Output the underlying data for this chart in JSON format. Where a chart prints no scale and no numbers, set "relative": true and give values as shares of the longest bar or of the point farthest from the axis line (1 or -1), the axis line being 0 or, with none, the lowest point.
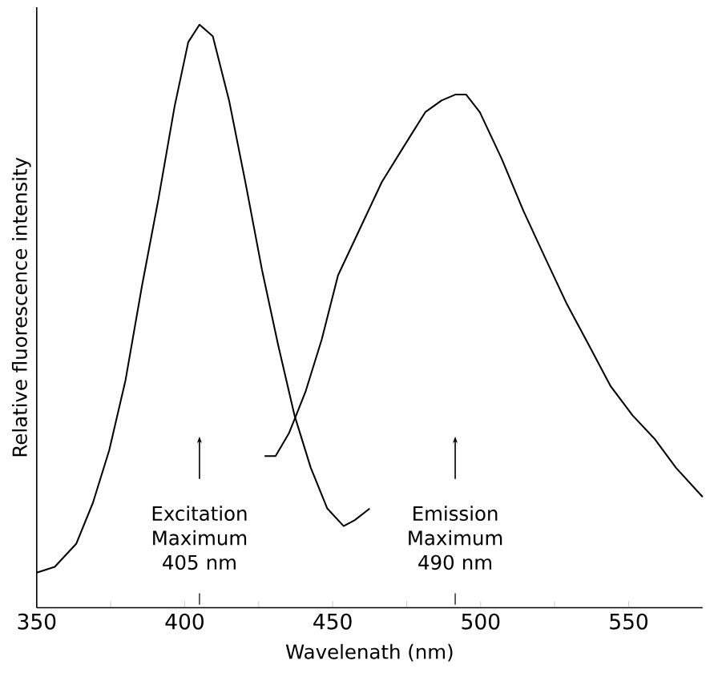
{
  "chart_data": {
    "type": "line",
    "relative": true,
    "xlabel": "Wavelenath (nm)",
    "ylabel": "Relative fluorescence intensity",
    "xlim": [
      350,
      575
    ],
    "xticks": [
      350,
      {
        "value": 375,
        "label": null
      },
      400,
      {
        "value": 425,
        "label": null
      },
      450,
      {
        "value": 475,
        "label": null
      },
      500,
      {
        "value": 525,
        "label": null
      },
      550
    ],
    "grid": false,
    "marker": "none",
    "line_style": "solid",
    "series": [
      {
        "color": "#000000",
        "x": [
          350,
          356.1,
          363.4,
          369,
          374.5,
          380,
          385.5,
          391.1,
          396.6,
          401.2,
          405,
          409.5,
          415,
          420.5,
          426.1,
          431.6,
          437.1,
          442.6,
          448.2,
          453.7,
          457.4,
          462.5
        ],
        "values": [
          0.06,
          0.07,
          0.11,
          0.18,
          0.27,
          0.39,
          0.55,
          0.7,
          0.86,
          0.97,
          1,
          0.98,
          0.87,
          0.73,
          0.58,
          0.45,
          0.33,
          0.24,
          0.17,
          0.14,
          0.15,
          0.17
        ]
      },
      {
        "color": "#000000",
        "x": [
          427,
          430.7,
          435.3,
          440.8,
          446.3,
          451.8,
          459.2,
          466.6,
          473.9,
          481.3,
          486.8,
          491.4,
          495.1,
          499.7,
          507.1,
          514.5,
          521.8,
          529.2,
          536.6,
          543.9,
          551.3,
          558.7,
          566,
          575
        ],
        "values": [
          0.26,
          0.26,
          0.3,
          0.37,
          0.46,
          0.57,
          0.65,
          0.73,
          0.79,
          0.85,
          0.87,
          0.88,
          0.88,
          0.85,
          0.77,
          0.68,
          0.6,
          0.52,
          0.45,
          0.38,
          0.33,
          0.29,
          0.24,
          0.19
        ]
      }
    ],
    "annotations": [
      "Excitation Maximum 405 nm",
      "Emission Maximum 490 nm"
    ]
  }
}
